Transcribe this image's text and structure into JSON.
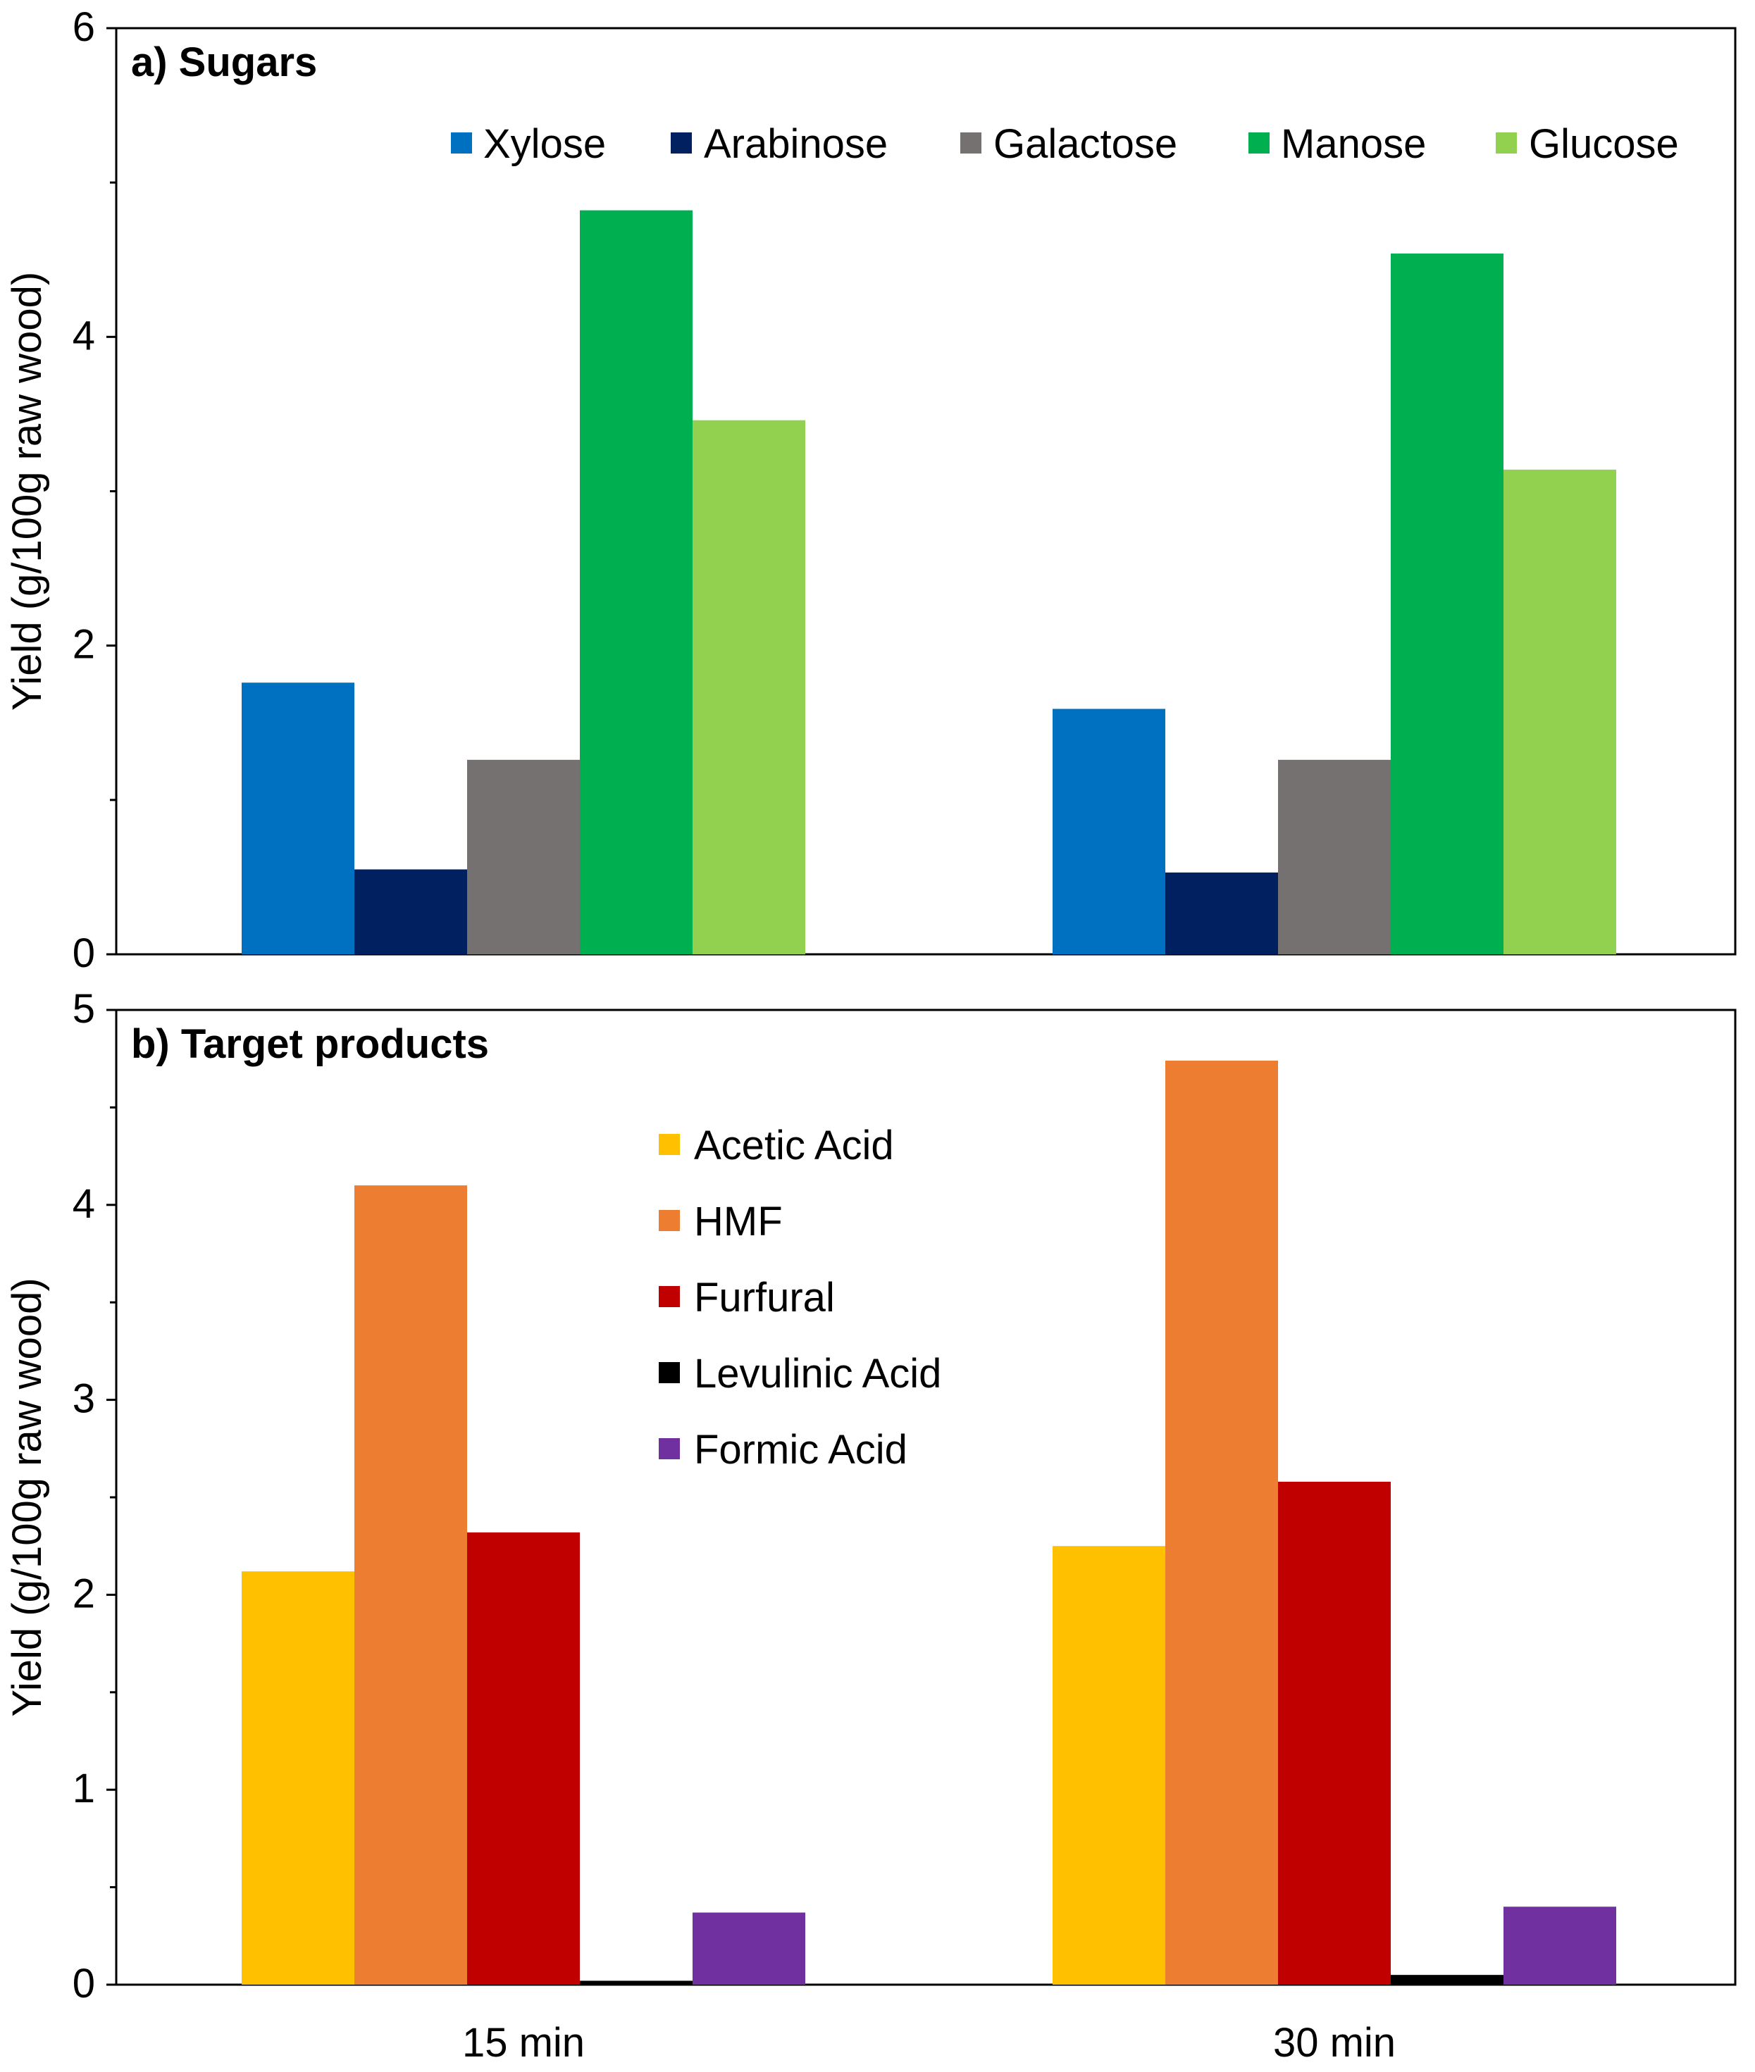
{
  "chart_data": [
    {
      "type": "bar",
      "panel": "a",
      "title": "a) Sugars",
      "xlabel": "",
      "ylabel": "Yield (g/100g raw wood)",
      "ylim": [
        0,
        6
      ],
      "yticks": [
        0,
        2,
        4,
        6
      ],
      "yticks_minor_step": 1,
      "categories": [
        "15 min",
        "30 min"
      ],
      "legend_position": "top",
      "series": [
        {
          "name": "Xylose",
          "color": "#0070c0",
          "values": [
            1.76,
            1.59
          ]
        },
        {
          "name": "Arabinose",
          "color": "#002060",
          "values": [
            0.55,
            0.53
          ]
        },
        {
          "name": "Galactose",
          "color": "#767171",
          "values": [
            1.26,
            1.26
          ]
        },
        {
          "name": "Manose",
          "color": "#00b050",
          "values": [
            4.82,
            4.54
          ]
        },
        {
          "name": "Glucose",
          "color": "#92d050",
          "values": [
            3.46,
            3.14
          ]
        }
      ]
    },
    {
      "type": "bar",
      "panel": "b",
      "title": "b) Target products",
      "xlabel": "",
      "ylabel": "Yield (g/100g raw wood)",
      "ylim": [
        0,
        5
      ],
      "yticks": [
        0,
        1,
        2,
        3,
        4,
        5
      ],
      "yticks_minor_step": 0.5,
      "categories": [
        "15 min",
        "30 min"
      ],
      "legend_position": "center",
      "series": [
        {
          "name": "Acetic Acid",
          "color": "#ffc000",
          "values": [
            2.12,
            2.25
          ]
        },
        {
          "name": "HMF",
          "color": "#ed7d31",
          "values": [
            4.1,
            4.74
          ]
        },
        {
          "name": "Furfural",
          "color": "#c00000",
          "values": [
            2.32,
            2.58
          ]
        },
        {
          "name": "Levulinic Acid",
          "color": "#000000",
          "values": [
            0.02,
            0.05
          ]
        },
        {
          "name": "Formic Acid",
          "color": "#7030a0",
          "values": [
            0.37,
            0.4
          ]
        }
      ]
    }
  ]
}
